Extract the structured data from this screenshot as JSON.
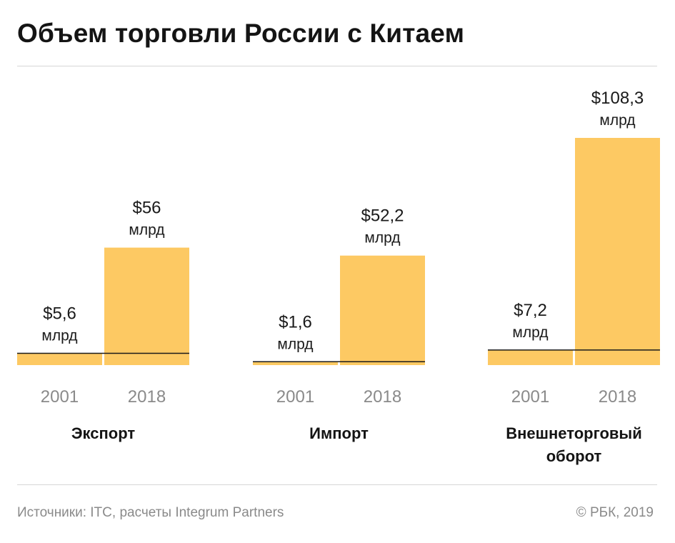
{
  "title": "Объем торговли России с Китаем",
  "chart_data": {
    "type": "bar",
    "title": "Объем торговли России с Китаем",
    "categories": [
      "2001",
      "2018"
    ],
    "groups": [
      {
        "name": "Экспорт",
        "label_lines": [
          "Экспорт"
        ],
        "values": [
          5.6,
          56
        ],
        "value_labels": [
          [
            "$5,6",
            "млрд"
          ],
          [
            "$56",
            "млрд"
          ]
        ]
      },
      {
        "name": "Импорт",
        "label_lines": [
          "Импорт"
        ],
        "values": [
          1.6,
          52.2
        ],
        "value_labels": [
          [
            "$1,6",
            "млрд"
          ],
          [
            "$52,2",
            "млрд"
          ]
        ]
      },
      {
        "name": "Внешнеторговый оборот",
        "label_lines": [
          "Внешнеторговый",
          "оборот"
        ],
        "values": [
          7.2,
          108.3
        ],
        "value_labels": [
          [
            "$7,2",
            "млрд"
          ],
          [
            "$108,3",
            "млрд"
          ]
        ]
      }
    ],
    "unit": "млрд долларов",
    "ylim": [
      0,
      108.3
    ],
    "grid": false,
    "legend": "none",
    "bar_color": "#fdc963",
    "marker_color": "#1a1a1a",
    "tick_color": "#8a8a8a"
  },
  "footer": {
    "source": "Источники: ITC, расчеты Integrum Partners",
    "copyright": "© РБК, 2019"
  }
}
